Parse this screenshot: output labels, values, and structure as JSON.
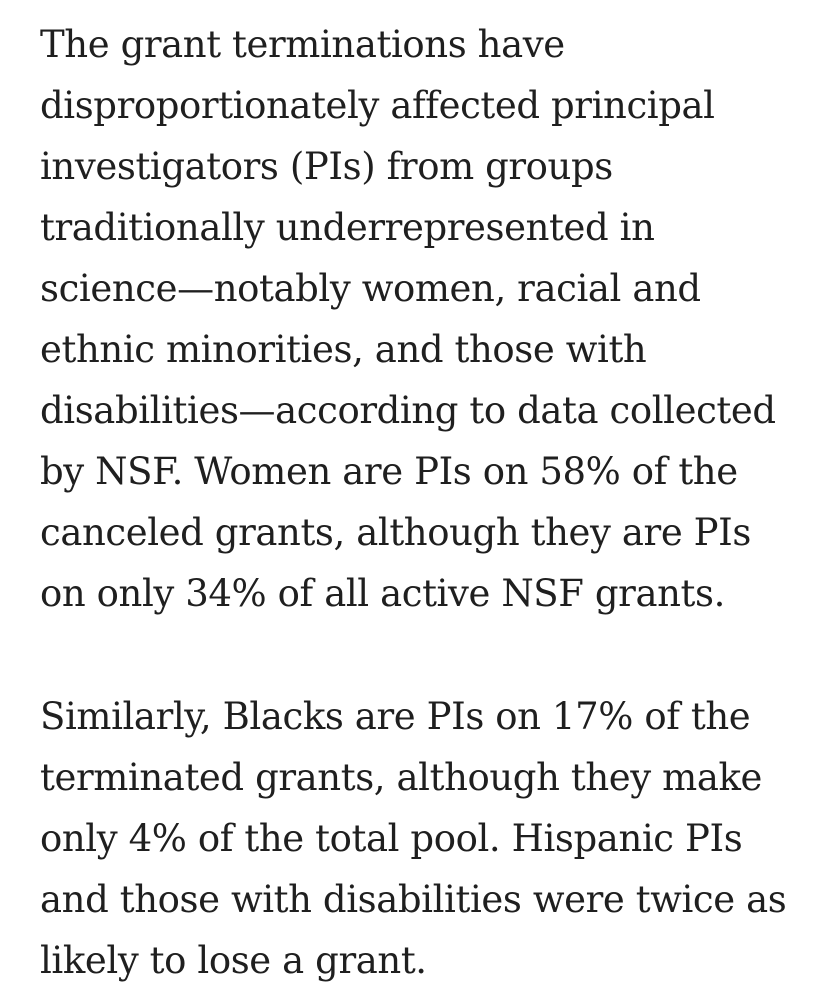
{
  "article": {
    "paragraphs": [
      {
        "lines": [
          "The grant terminations have",
          "disproportionately affected principal",
          "investigators (PIs) from groups",
          "traditionally underrepresented in",
          "science—notably women, racial and",
          "ethnic minorities, and those with",
          "disabilities—according to data collected",
          "by NSF. Women are PIs on 58% of the",
          "canceled grants, although they are PIs",
          "on only 34% of all active NSF grants."
        ]
      },
      {
        "lines": [
          "Similarly, Blacks are PIs on 17% of the",
          "terminated grants, although they make",
          "only 4% of the total pool. Hispanic PIs",
          "and those with disabilities were twice as",
          "likely to lose a grant."
        ]
      }
    ]
  }
}
